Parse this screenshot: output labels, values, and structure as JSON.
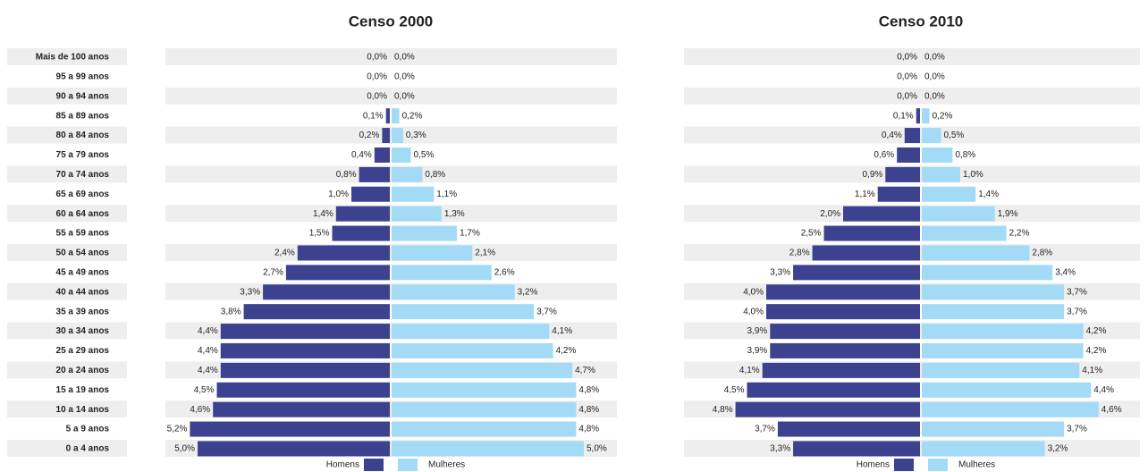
{
  "chart_data": [
    {
      "type": "bar",
      "title": "Censo 2000",
      "categories": [
        "Mais de 100 anos",
        "95 a 99 anos",
        "90 a 94 anos",
        "85 a 89 anos",
        "80 a 84 anos",
        "75 a 79 anos",
        "70 a 74 anos",
        "65 a 69 anos",
        "60 a 64 anos",
        "55 a 59 anos",
        "50 a 54 anos",
        "45 a 49 anos",
        "40 a 44 anos",
        "35 a 39 anos",
        "30 a 34 anos",
        "25 a 29 anos",
        "20 a 24 anos",
        "15 a 19 anos",
        "10 a 14 anos",
        "5 a 9 anos",
        "0 a 4 anos"
      ],
      "series": [
        {
          "name": "Homens",
          "color": "#3c4190",
          "values": [
            0.0,
            0.0,
            0.0,
            0.1,
            0.2,
            0.4,
            0.8,
            1.0,
            1.4,
            1.5,
            2.4,
            2.7,
            3.3,
            3.8,
            4.4,
            4.4,
            4.4,
            4.5,
            4.6,
            5.2,
            5.0
          ],
          "value_labels": [
            "0,0%",
            "0,0%",
            "0,0%",
            "0,1%",
            "0,2%",
            "0,4%",
            "0,8%",
            "1,0%",
            "1,4%",
            "1,5%",
            "2,4%",
            "2,7%",
            "3,3%",
            "3,8%",
            "4,4%",
            "4,4%",
            "4,4%",
            "4,5%",
            "4,6%",
            "5,2%",
            "5,0%"
          ]
        },
        {
          "name": "Mulheres",
          "color": "#a3dbf6",
          "values": [
            0.0,
            0.0,
            0.0,
            0.2,
            0.3,
            0.5,
            0.8,
            1.1,
            1.3,
            1.7,
            2.1,
            2.6,
            3.2,
            3.7,
            4.1,
            4.2,
            4.7,
            4.8,
            4.8,
            4.8,
            5.0
          ],
          "value_labels": [
            "0,0%",
            "0,0%",
            "0,0%",
            "0,2%",
            "0,3%",
            "0,5%",
            "0,8%",
            "1,1%",
            "1,3%",
            "1,7%",
            "2,1%",
            "2,6%",
            "3,2%",
            "3,7%",
            "4,1%",
            "4,2%",
            "4,7%",
            "4,8%",
            "4,8%",
            "4,8%",
            "5,0%"
          ]
        }
      ]
    },
    {
      "type": "bar",
      "title": "Censo 2010",
      "series": [
        {
          "name": "Homens",
          "color": "#3c4190",
          "values": [
            0.0,
            0.0,
            0.0,
            0.1,
            0.4,
            0.6,
            0.9,
            1.1,
            2.0,
            2.5,
            2.8,
            3.3,
            4.0,
            4.0,
            3.9,
            3.9,
            4.1,
            4.5,
            4.8,
            3.7,
            3.3
          ],
          "value_labels": [
            "0,0%",
            "0,0%",
            "0,0%",
            "0,1%",
            "0,4%",
            "0,6%",
            "0,9%",
            "1,1%",
            "2,0%",
            "2,5%",
            "2,8%",
            "3,3%",
            "4,0%",
            "4,0%",
            "3,9%",
            "3,9%",
            "4,1%",
            "4,5%",
            "4,8%",
            "3,7%",
            "3,3%"
          ]
        },
        {
          "name": "Mulheres",
          "color": "#a3dbf6",
          "values": [
            0.0,
            0.0,
            0.0,
            0.2,
            0.5,
            0.8,
            1.0,
            1.4,
            1.9,
            2.2,
            2.8,
            3.4,
            3.7,
            3.7,
            4.2,
            4.2,
            4.1,
            4.4,
            4.6,
            3.7,
            3.2
          ],
          "value_labels": [
            "0,0%",
            "0,0%",
            "0,0%",
            "0,2%",
            "0,5%",
            "0,8%",
            "1,0%",
            "1,4%",
            "1,9%",
            "2,2%",
            "2,8%",
            "3,4%",
            "3,7%",
            "3,7%",
            "4,2%",
            "4,2%",
            "4,1%",
            "4,4%",
            "4,6%",
            "3,7%",
            "3,2%"
          ]
        }
      ]
    }
  ]
}
